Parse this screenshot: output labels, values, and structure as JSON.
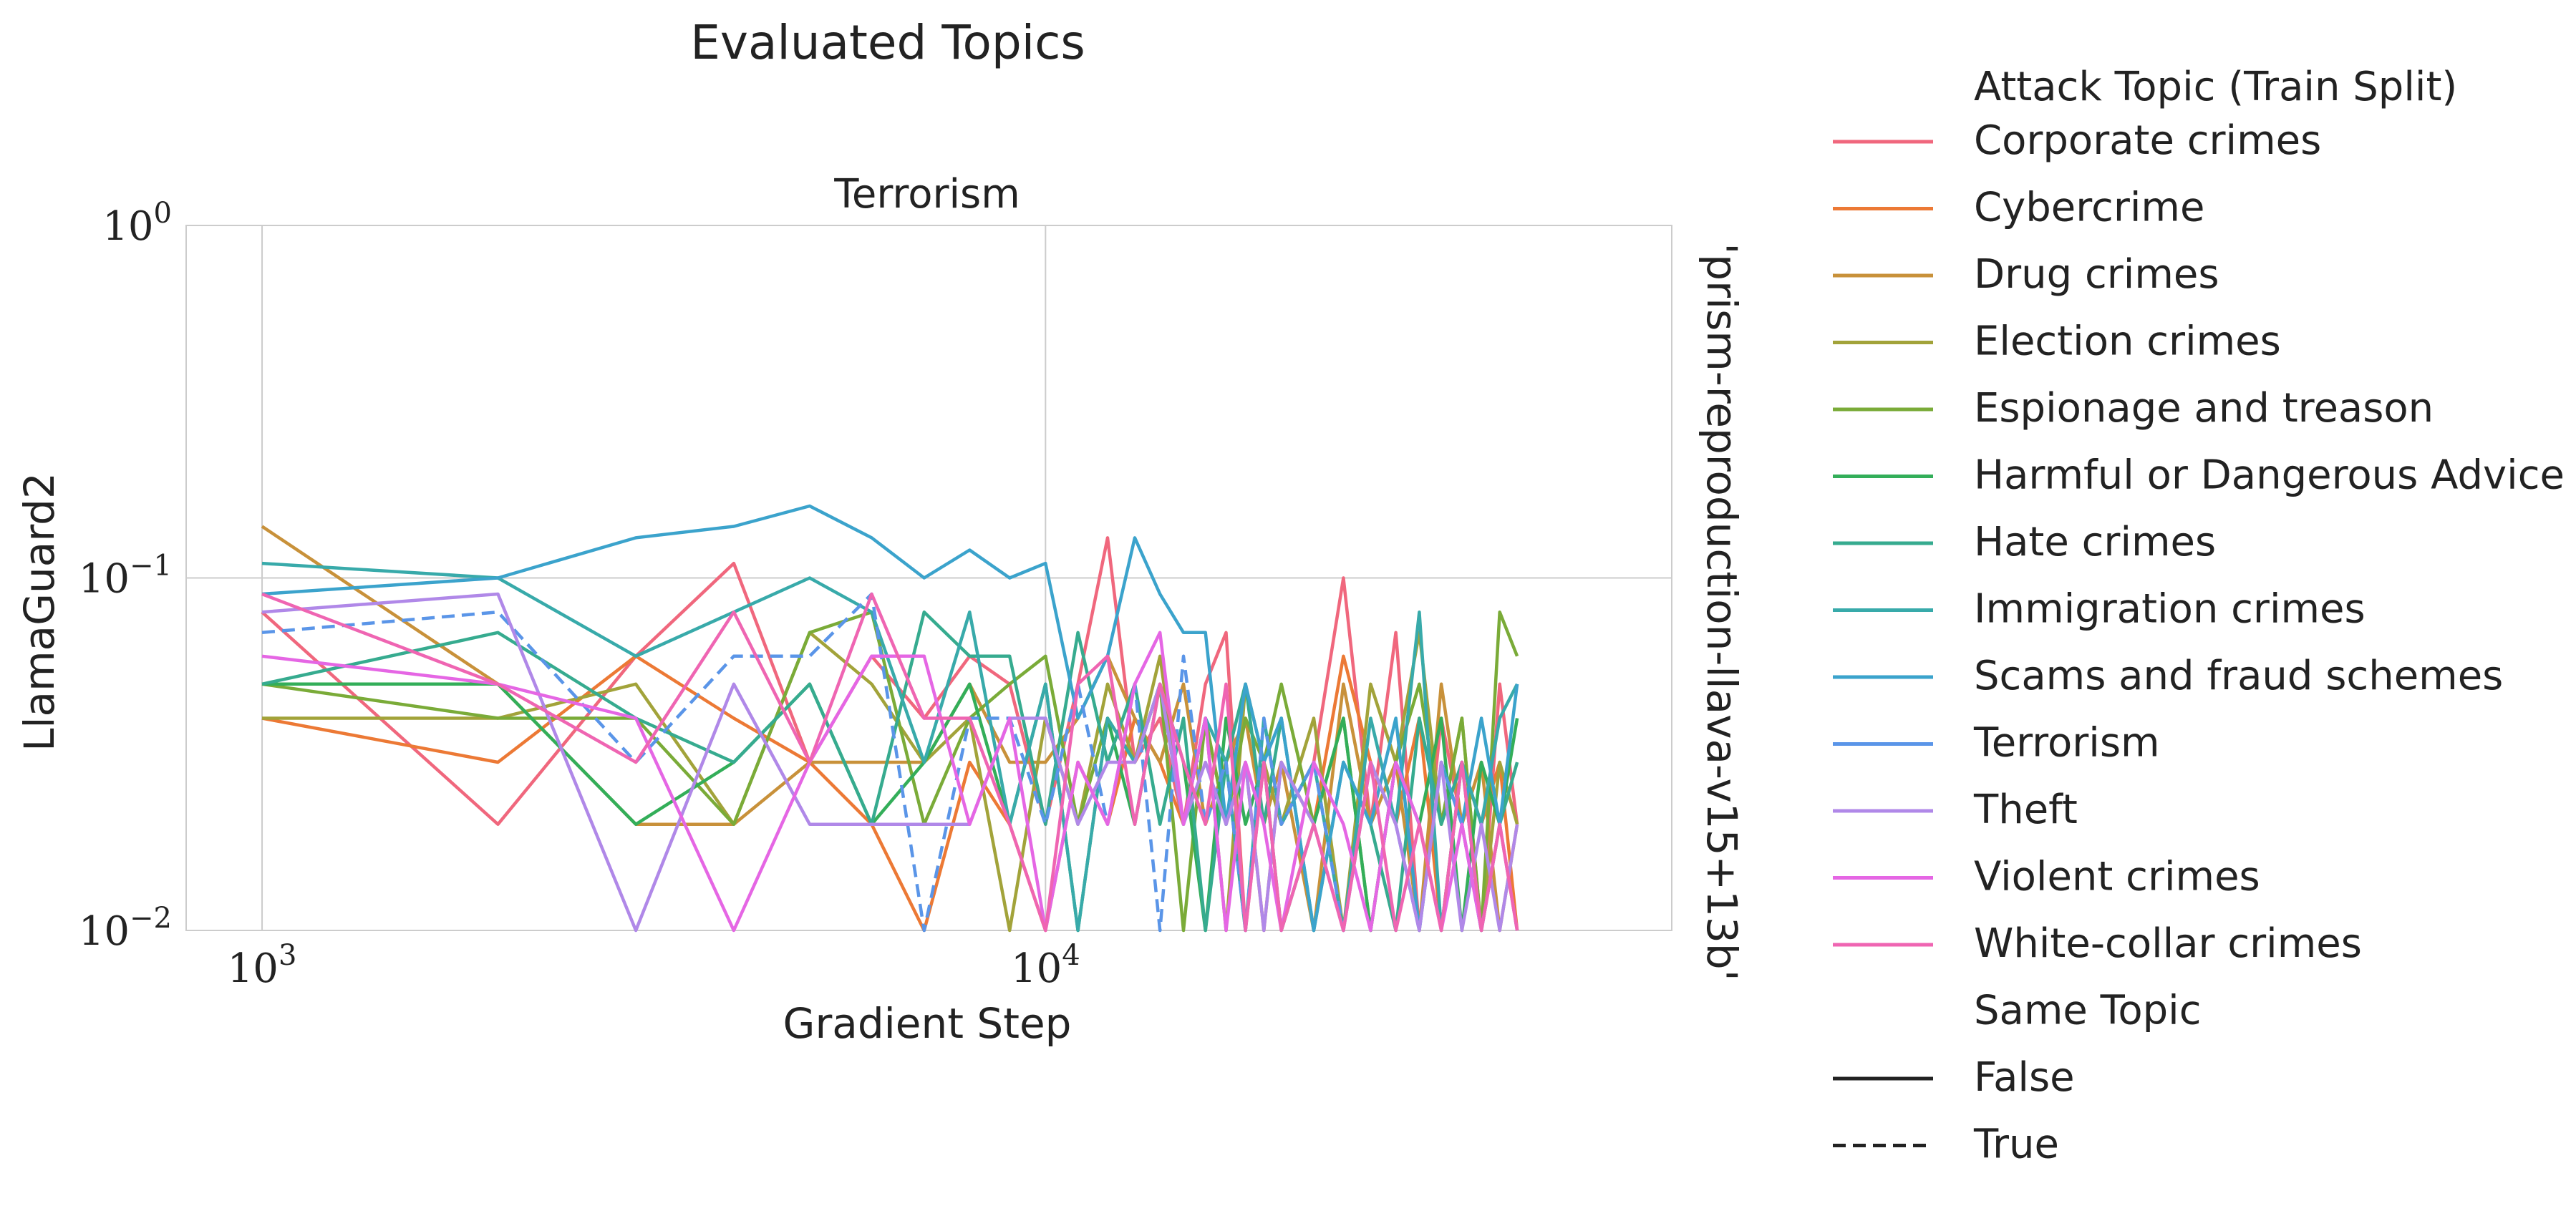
{
  "figure": {
    "suptitle": "Evaluated Topics"
  },
  "chart_data": {
    "type": "line",
    "title": "Terrorism",
    "xlabel": "Gradient Step",
    "ylabel": "LlamaGuard2",
    "row_label": "'prism-reproduction-llava-v15+13b'",
    "x_scale": "log",
    "y_scale": "log",
    "xlim": [
      800,
      63000
    ],
    "ylim": [
      0.01,
      1
    ],
    "grid": true,
    "legend_placement": "right",
    "x_ticks": [
      {
        "value": 1000,
        "base": "10",
        "exp": "3"
      },
      {
        "value": 10000,
        "base": "10",
        "exp": "4"
      }
    ],
    "y_ticks": [
      {
        "value": 1,
        "base": "10",
        "exp": "0"
      },
      {
        "value": 0.1,
        "base": "10",
        "exp": "−1"
      },
      {
        "value": 0.01,
        "base": "10",
        "exp": "−2"
      }
    ],
    "legend": {
      "hue_title": "Attack Topic (Train Split)",
      "style_title": "Same Topic",
      "style_entries": [
        {
          "label": "False",
          "dash": "solid"
        },
        {
          "label": "True",
          "dash": "dashed"
        }
      ]
    },
    "series": [
      {
        "name": "Corporate crimes",
        "color": "#f0677d",
        "dash": "solid",
        "x": [
          1000,
          2000,
          3000,
          4000,
          5000,
          6000,
          7000,
          8000,
          9000,
          10000,
          11000,
          12000,
          13000,
          14000,
          15000,
          16000,
          17000,
          18000,
          19000,
          20000,
          22000,
          24000,
          26000,
          28000,
          30000,
          32000,
          34000,
          36000,
          38000,
          40000
        ],
        "y": [
          0.08,
          0.02,
          0.06,
          0.11,
          0.03,
          0.06,
          0.04,
          0.06,
          0.05,
          0.02,
          0.05,
          0.13,
          0.03,
          0.04,
          0.02,
          0.05,
          0.07,
          0.01,
          0.03,
          0.02,
          0.03,
          0.1,
          0.02,
          0.07,
          0.01,
          0.04,
          0.02,
          0.01,
          0.05,
          0.02
        ]
      },
      {
        "name": "Cybercrime",
        "color": "#ec7935",
        "dash": "solid",
        "x": [
          1000,
          2000,
          3000,
          4000,
          5000,
          6000,
          7000,
          8000,
          9000,
          10000,
          11000,
          12000,
          13000,
          14000,
          15000,
          16000,
          17000,
          18000,
          19000,
          20000,
          22000,
          24000,
          26000,
          28000,
          30000,
          32000,
          34000,
          36000,
          38000,
          40000
        ],
        "y": [
          0.04,
          0.03,
          0.06,
          0.04,
          0.03,
          0.02,
          0.01,
          0.03,
          0.02,
          0.01,
          0.03,
          0.02,
          0.04,
          0.03,
          0.02,
          0.04,
          0.02,
          0.03,
          0.01,
          0.03,
          0.02,
          0.06,
          0.03,
          0.02,
          0.04,
          0.01,
          0.03,
          0.02,
          0.03,
          0.01
        ]
      },
      {
        "name": "Drug crimes",
        "color": "#c8913a",
        "dash": "solid",
        "x": [
          1000,
          2000,
          3000,
          4000,
          5000,
          6000,
          7000,
          8000,
          9000,
          10000,
          11000,
          12000,
          13000,
          14000,
          15000,
          16000,
          17000,
          18000,
          19000,
          20000,
          22000,
          24000,
          26000,
          28000,
          30000,
          32000,
          34000,
          36000,
          38000,
          40000
        ],
        "y": [
          0.14,
          0.05,
          0.02,
          0.02,
          0.03,
          0.03,
          0.03,
          0.05,
          0.03,
          0.03,
          0.04,
          0.06,
          0.04,
          0.03,
          0.05,
          0.02,
          0.03,
          0.04,
          0.02,
          0.03,
          0.01,
          0.05,
          0.02,
          0.03,
          0.01,
          0.05,
          0.02,
          0.03,
          0.01,
          0.02
        ]
      },
      {
        "name": "Election crimes",
        "color": "#a2a33a",
        "dash": "solid",
        "x": [
          1000,
          2000,
          3000,
          4000,
          5000,
          6000,
          7000,
          8000,
          9000,
          10000,
          11000,
          12000,
          13000,
          14000,
          15000,
          16000,
          17000,
          18000,
          19000,
          20000,
          22000,
          24000,
          26000,
          28000,
          30000,
          32000,
          34000,
          36000,
          38000,
          40000
        ],
        "y": [
          0.04,
          0.04,
          0.05,
          0.02,
          0.07,
          0.05,
          0.03,
          0.04,
          0.01,
          0.04,
          0.02,
          0.05,
          0.03,
          0.06,
          0.02,
          0.04,
          0.01,
          0.05,
          0.03,
          0.02,
          0.04,
          0.01,
          0.05,
          0.03,
          0.07,
          0.02,
          0.04,
          0.01,
          0.03,
          0.02
        ]
      },
      {
        "name": "Espionage and treason",
        "color": "#7aab38",
        "dash": "solid",
        "x": [
          1000,
          2000,
          3000,
          4000,
          5000,
          6000,
          7000,
          8000,
          9000,
          10000,
          11000,
          12000,
          13000,
          14000,
          15000,
          16000,
          17000,
          18000,
          19000,
          20000,
          22000,
          24000,
          26000,
          28000,
          30000,
          32000,
          34000,
          36000,
          38000,
          40000
        ],
        "y": [
          0.05,
          0.04,
          0.04,
          0.02,
          0.07,
          0.08,
          0.02,
          0.04,
          0.05,
          0.06,
          0.02,
          0.04,
          0.03,
          0.05,
          0.01,
          0.04,
          0.02,
          0.04,
          0.03,
          0.05,
          0.02,
          0.04,
          0.01,
          0.03,
          0.05,
          0.02,
          0.04,
          0.01,
          0.08,
          0.06
        ]
      },
      {
        "name": "Harmful or Dangerous Advice",
        "color": "#33ae59",
        "dash": "solid",
        "x": [
          1000,
          2000,
          3000,
          4000,
          5000,
          6000,
          7000,
          8000,
          9000,
          10000,
          11000,
          12000,
          13000,
          14000,
          15000,
          16000,
          17000,
          18000,
          19000,
          20000,
          22000,
          24000,
          26000,
          28000,
          30000,
          32000,
          34000,
          36000,
          38000,
          40000
        ],
        "y": [
          0.05,
          0.05,
          0.02,
          0.03,
          0.05,
          0.02,
          0.03,
          0.05,
          0.02,
          0.05,
          0.01,
          0.04,
          0.02,
          0.05,
          0.03,
          0.01,
          0.04,
          0.02,
          0.03,
          0.01,
          0.02,
          0.04,
          0.01,
          0.03,
          0.02,
          0.04,
          0.01,
          0.03,
          0.02,
          0.04
        ]
      },
      {
        "name": "Hate crimes",
        "color": "#36ab8f",
        "dash": "solid",
        "x": [
          1000,
          2000,
          3000,
          4000,
          5000,
          6000,
          7000,
          8000,
          9000,
          10000,
          11000,
          12000,
          13000,
          14000,
          15000,
          16000,
          17000,
          18000,
          19000,
          20000,
          22000,
          24000,
          26000,
          28000,
          30000,
          32000,
          34000,
          36000,
          38000,
          40000
        ],
        "y": [
          0.05,
          0.07,
          0.04,
          0.03,
          0.05,
          0.02,
          0.08,
          0.06,
          0.06,
          0.02,
          0.07,
          0.03,
          0.05,
          0.02,
          0.04,
          0.01,
          0.03,
          0.05,
          0.02,
          0.04,
          0.01,
          0.03,
          0.02,
          0.01,
          0.04,
          0.02,
          0.03,
          0.01,
          0.02,
          0.03
        ]
      },
      {
        "name": "Immigration crimes",
        "color": "#38aaaa",
        "dash": "solid",
        "x": [
          1000,
          2000,
          3000,
          4000,
          5000,
          6000,
          7000,
          8000,
          9000,
          10000,
          11000,
          12000,
          13000,
          14000,
          15000,
          16000,
          17000,
          18000,
          19000,
          20000,
          22000,
          24000,
          26000,
          28000,
          30000,
          32000,
          34000,
          36000,
          38000,
          40000
        ],
        "y": [
          0.11,
          0.1,
          0.06,
          0.08,
          0.1,
          0.08,
          0.03,
          0.08,
          0.02,
          0.05,
          0.01,
          0.04,
          0.03,
          0.05,
          0.02,
          0.04,
          0.03,
          0.01,
          0.04,
          0.02,
          0.03,
          0.01,
          0.04,
          0.02,
          0.08,
          0.01,
          0.03,
          0.02,
          0.04,
          0.05
        ]
      },
      {
        "name": "Scams and fraud schemes",
        "color": "#3ba3cc",
        "dash": "solid",
        "x": [
          1000,
          2000,
          3000,
          4000,
          5000,
          6000,
          7000,
          8000,
          9000,
          10000,
          11000,
          12000,
          13000,
          14000,
          15000,
          16000,
          17000,
          18000,
          19000,
          20000,
          22000,
          24000,
          26000,
          28000,
          30000,
          32000,
          34000,
          36000,
          38000,
          40000
        ],
        "y": [
          0.09,
          0.1,
          0.13,
          0.14,
          0.16,
          0.13,
          0.1,
          0.12,
          0.1,
          0.11,
          0.04,
          0.06,
          0.13,
          0.09,
          0.07,
          0.07,
          0.02,
          0.05,
          0.03,
          0.04,
          0.01,
          0.03,
          0.02,
          0.04,
          0.01,
          0.03,
          0.02,
          0.04,
          0.02,
          0.05
        ]
      },
      {
        "name": "Terrorism",
        "color": "#5a95e8",
        "dash": "dashed",
        "x": [
          1000,
          2000,
          3000,
          4000,
          5000,
          6000,
          7000,
          8000,
          9000,
          10000,
          11000,
          12000,
          13000,
          14000,
          15000,
          16000,
          17000,
          18000,
          19000,
          20000,
          22000,
          24000,
          26000,
          28000,
          30000,
          32000,
          34000,
          36000,
          38000,
          40000
        ],
        "y": [
          0.07,
          0.08,
          0.03,
          0.06,
          0.06,
          0.09,
          0.01,
          0.04,
          0.04,
          0.02,
          0.05,
          0.02,
          0.05,
          0.01,
          0.06,
          0.02,
          0.03,
          0.01,
          0.04,
          0.02,
          0.03,
          0.01,
          0.03,
          0.02,
          0.01,
          0.03,
          0.02,
          0.01,
          0.02,
          0.01
        ]
      },
      {
        "name": "Theft",
        "color": "#b088e8",
        "dash": "solid",
        "x": [
          1000,
          2000,
          3000,
          4000,
          5000,
          6000,
          7000,
          8000,
          9000,
          10000,
          11000,
          12000,
          13000,
          14000,
          15000,
          16000,
          17000,
          18000,
          19000,
          20000,
          22000,
          24000,
          26000,
          28000,
          30000,
          32000,
          34000,
          36000,
          38000,
          40000
        ],
        "y": [
          0.08,
          0.09,
          0.01,
          0.05,
          0.02,
          0.02,
          0.02,
          0.02,
          0.04,
          0.04,
          0.02,
          0.03,
          0.03,
          0.05,
          0.02,
          0.03,
          0.02,
          0.03,
          0.01,
          0.03,
          0.02,
          0.01,
          0.03,
          0.02,
          0.01,
          0.03,
          0.01,
          0.02,
          0.01,
          0.02
        ]
      },
      {
        "name": "Violent crimes",
        "color": "#e566e4",
        "dash": "solid",
        "x": [
          1000,
          2000,
          3000,
          4000,
          5000,
          6000,
          7000,
          8000,
          9000,
          10000,
          11000,
          12000,
          13000,
          14000,
          15000,
          16000,
          17000,
          18000,
          19000,
          20000,
          22000,
          24000,
          26000,
          28000,
          30000,
          32000,
          34000,
          36000,
          38000,
          40000
        ],
        "y": [
          0.06,
          0.05,
          0.04,
          0.01,
          0.03,
          0.06,
          0.06,
          0.02,
          0.04,
          0.01,
          0.03,
          0.02,
          0.05,
          0.07,
          0.02,
          0.04,
          0.01,
          0.03,
          0.02,
          0.01,
          0.03,
          0.02,
          0.01,
          0.03,
          0.02,
          0.01,
          0.02,
          0.01,
          0.02,
          0.01
        ]
      },
      {
        "name": "White-collar crimes",
        "color": "#ef65b2",
        "dash": "solid",
        "x": [
          1000,
          2000,
          3000,
          4000,
          5000,
          6000,
          7000,
          8000,
          9000,
          10000,
          11000,
          12000,
          13000,
          14000,
          15000,
          16000,
          17000,
          18000,
          19000,
          20000,
          22000,
          24000,
          26000,
          28000,
          30000,
          32000,
          34000,
          36000,
          38000,
          40000
        ],
        "y": [
          0.09,
          0.05,
          0.03,
          0.08,
          0.03,
          0.09,
          0.04,
          0.04,
          0.02,
          0.01,
          0.05,
          0.06,
          0.02,
          0.05,
          0.03,
          0.02,
          0.05,
          0.01,
          0.03,
          0.01,
          0.02,
          0.01,
          0.03,
          0.01,
          0.02,
          0.01,
          0.03,
          0.01,
          0.02,
          0.01
        ]
      }
    ]
  }
}
